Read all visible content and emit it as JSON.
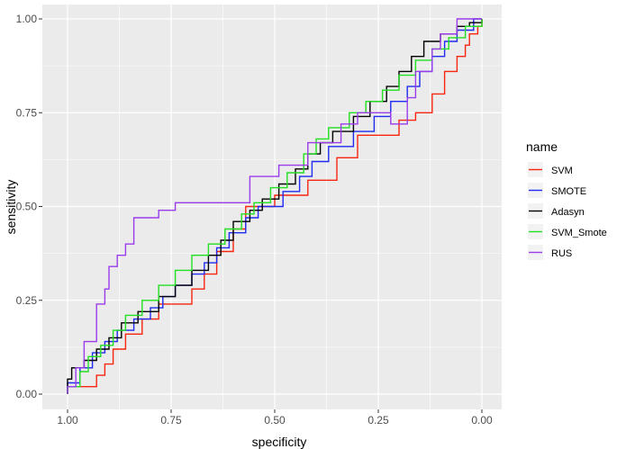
{
  "chart_data": {
    "type": "line",
    "title": "",
    "xlabel": "specificity",
    "ylabel": "sensitivity",
    "x_reversed": true,
    "xlim": [
      1.0,
      0.0
    ],
    "ylim": [
      0.0,
      1.0
    ],
    "x_ticks": [
      1.0,
      0.75,
      0.5,
      0.25,
      0.0
    ],
    "x_tick_labels": [
      "1.00",
      "0.75",
      "0.50",
      "0.25",
      "0.00"
    ],
    "y_ticks": [
      0.0,
      0.25,
      0.5,
      0.75,
      1.0
    ],
    "y_tick_labels": [
      "0.00",
      "0.25",
      "0.50",
      "0.75",
      "1.00"
    ],
    "grid": true,
    "background": "#EBEBEB",
    "legend": {
      "title": "name",
      "position": "right"
    },
    "series": [
      {
        "name": "SVM",
        "color": "#F8250F",
        "points": [
          [
            1.0,
            0.0
          ],
          [
            1.0,
            0.02
          ],
          [
            0.93,
            0.02
          ],
          [
            0.93,
            0.05
          ],
          [
            0.91,
            0.05
          ],
          [
            0.91,
            0.08
          ],
          [
            0.89,
            0.08
          ],
          [
            0.89,
            0.12
          ],
          [
            0.86,
            0.12
          ],
          [
            0.86,
            0.16
          ],
          [
            0.82,
            0.16
          ],
          [
            0.82,
            0.2
          ],
          [
            0.78,
            0.2
          ],
          [
            0.78,
            0.24
          ],
          [
            0.7,
            0.24
          ],
          [
            0.7,
            0.28
          ],
          [
            0.67,
            0.28
          ],
          [
            0.67,
            0.32
          ],
          [
            0.64,
            0.32
          ],
          [
            0.64,
            0.38
          ],
          [
            0.6,
            0.38
          ],
          [
            0.6,
            0.44
          ],
          [
            0.57,
            0.44
          ],
          [
            0.57,
            0.5
          ],
          [
            0.5,
            0.5
          ],
          [
            0.5,
            0.53
          ],
          [
            0.42,
            0.53
          ],
          [
            0.42,
            0.57
          ],
          [
            0.35,
            0.57
          ],
          [
            0.35,
            0.63
          ],
          [
            0.3,
            0.63
          ],
          [
            0.3,
            0.69
          ],
          [
            0.2,
            0.69
          ],
          [
            0.2,
            0.73
          ],
          [
            0.16,
            0.73
          ],
          [
            0.16,
            0.75
          ],
          [
            0.12,
            0.75
          ],
          [
            0.12,
            0.8
          ],
          [
            0.09,
            0.8
          ],
          [
            0.09,
            0.86
          ],
          [
            0.06,
            0.86
          ],
          [
            0.06,
            0.9
          ],
          [
            0.04,
            0.9
          ],
          [
            0.04,
            0.93
          ],
          [
            0.03,
            0.93
          ],
          [
            0.03,
            0.96
          ],
          [
            0.01,
            0.96
          ],
          [
            0.01,
            0.98
          ],
          [
            0.0,
            0.98
          ],
          [
            0.0,
            1.0
          ]
        ]
      },
      {
        "name": "SMOTE",
        "color": "#1F2BF0",
        "points": [
          [
            1.0,
            0.0
          ],
          [
            1.0,
            0.03
          ],
          [
            0.97,
            0.03
          ],
          [
            0.97,
            0.07
          ],
          [
            0.94,
            0.07
          ],
          [
            0.94,
            0.11
          ],
          [
            0.91,
            0.11
          ],
          [
            0.91,
            0.14
          ],
          [
            0.88,
            0.14
          ],
          [
            0.88,
            0.17
          ],
          [
            0.84,
            0.17
          ],
          [
            0.84,
            0.2
          ],
          [
            0.8,
            0.2
          ],
          [
            0.8,
            0.23
          ],
          [
            0.77,
            0.23
          ],
          [
            0.77,
            0.26
          ],
          [
            0.74,
            0.26
          ],
          [
            0.74,
            0.29
          ],
          [
            0.7,
            0.29
          ],
          [
            0.7,
            0.32
          ],
          [
            0.67,
            0.32
          ],
          [
            0.67,
            0.35
          ],
          [
            0.64,
            0.35
          ],
          [
            0.64,
            0.39
          ],
          [
            0.61,
            0.39
          ],
          [
            0.61,
            0.43
          ],
          [
            0.57,
            0.43
          ],
          [
            0.57,
            0.47
          ],
          [
            0.54,
            0.47
          ],
          [
            0.54,
            0.5
          ],
          [
            0.48,
            0.5
          ],
          [
            0.48,
            0.54
          ],
          [
            0.44,
            0.54
          ],
          [
            0.44,
            0.58
          ],
          [
            0.41,
            0.58
          ],
          [
            0.41,
            0.62
          ],
          [
            0.37,
            0.62
          ],
          [
            0.37,
            0.66
          ],
          [
            0.31,
            0.66
          ],
          [
            0.31,
            0.7
          ],
          [
            0.26,
            0.7
          ],
          [
            0.26,
            0.74
          ],
          [
            0.22,
            0.74
          ],
          [
            0.22,
            0.78
          ],
          [
            0.18,
            0.78
          ],
          [
            0.18,
            0.82
          ],
          [
            0.15,
            0.82
          ],
          [
            0.15,
            0.86
          ],
          [
            0.12,
            0.86
          ],
          [
            0.12,
            0.9
          ],
          [
            0.09,
            0.9
          ],
          [
            0.09,
            0.94
          ],
          [
            0.06,
            0.94
          ],
          [
            0.06,
            0.97
          ],
          [
            0.02,
            0.97
          ],
          [
            0.02,
            1.0
          ],
          [
            0.0,
            1.0
          ]
        ]
      },
      {
        "name": "Adasyn",
        "color": "#000000",
        "points": [
          [
            1.0,
            0.0
          ],
          [
            1.0,
            0.04
          ],
          [
            0.99,
            0.04
          ],
          [
            0.99,
            0.07
          ],
          [
            0.96,
            0.07
          ],
          [
            0.96,
            0.09
          ],
          [
            0.93,
            0.09
          ],
          [
            0.93,
            0.12
          ],
          [
            0.9,
            0.12
          ],
          [
            0.9,
            0.15
          ],
          [
            0.87,
            0.15
          ],
          [
            0.87,
            0.19
          ],
          [
            0.83,
            0.19
          ],
          [
            0.83,
            0.22
          ],
          [
            0.78,
            0.22
          ],
          [
            0.78,
            0.26
          ],
          [
            0.74,
            0.26
          ],
          [
            0.74,
            0.29
          ],
          [
            0.7,
            0.29
          ],
          [
            0.7,
            0.33
          ],
          [
            0.66,
            0.33
          ],
          [
            0.66,
            0.37
          ],
          [
            0.63,
            0.37
          ],
          [
            0.63,
            0.41
          ],
          [
            0.6,
            0.41
          ],
          [
            0.6,
            0.46
          ],
          [
            0.56,
            0.46
          ],
          [
            0.56,
            0.49
          ],
          [
            0.53,
            0.49
          ],
          [
            0.53,
            0.52
          ],
          [
            0.49,
            0.52
          ],
          [
            0.49,
            0.56
          ],
          [
            0.45,
            0.56
          ],
          [
            0.45,
            0.6
          ],
          [
            0.42,
            0.6
          ],
          [
            0.42,
            0.64
          ],
          [
            0.39,
            0.64
          ],
          [
            0.39,
            0.67
          ],
          [
            0.36,
            0.67
          ],
          [
            0.36,
            0.7
          ],
          [
            0.31,
            0.7
          ],
          [
            0.31,
            0.74
          ],
          [
            0.27,
            0.74
          ],
          [
            0.27,
            0.78
          ],
          [
            0.23,
            0.78
          ],
          [
            0.23,
            0.82
          ],
          [
            0.2,
            0.82
          ],
          [
            0.2,
            0.86
          ],
          [
            0.17,
            0.86
          ],
          [
            0.17,
            0.9
          ],
          [
            0.14,
            0.9
          ],
          [
            0.14,
            0.94
          ],
          [
            0.1,
            0.94
          ],
          [
            0.1,
            0.96
          ],
          [
            0.06,
            0.96
          ],
          [
            0.06,
            0.98
          ],
          [
            0.03,
            0.98
          ],
          [
            0.03,
            0.99
          ],
          [
            0.0,
            0.99
          ],
          [
            0.0,
            1.0
          ]
        ]
      },
      {
        "name": "SVM_Smote",
        "color": "#22E022",
        "points": [
          [
            1.0,
            0.0
          ],
          [
            1.0,
            0.02
          ],
          [
            0.97,
            0.02
          ],
          [
            0.97,
            0.06
          ],
          [
            0.95,
            0.06
          ],
          [
            0.95,
            0.1
          ],
          [
            0.92,
            0.1
          ],
          [
            0.92,
            0.13
          ],
          [
            0.89,
            0.13
          ],
          [
            0.89,
            0.17
          ],
          [
            0.86,
            0.17
          ],
          [
            0.86,
            0.21
          ],
          [
            0.82,
            0.21
          ],
          [
            0.82,
            0.25
          ],
          [
            0.78,
            0.25
          ],
          [
            0.78,
            0.29
          ],
          [
            0.74,
            0.29
          ],
          [
            0.74,
            0.33
          ],
          [
            0.7,
            0.33
          ],
          [
            0.7,
            0.37
          ],
          [
            0.66,
            0.37
          ],
          [
            0.66,
            0.4
          ],
          [
            0.62,
            0.4
          ],
          [
            0.62,
            0.44
          ],
          [
            0.58,
            0.44
          ],
          [
            0.58,
            0.48
          ],
          [
            0.55,
            0.48
          ],
          [
            0.55,
            0.51
          ],
          [
            0.51,
            0.51
          ],
          [
            0.51,
            0.55
          ],
          [
            0.47,
            0.55
          ],
          [
            0.47,
            0.59
          ],
          [
            0.43,
            0.59
          ],
          [
            0.43,
            0.64
          ],
          [
            0.4,
            0.64
          ],
          [
            0.4,
            0.68
          ],
          [
            0.37,
            0.68
          ],
          [
            0.37,
            0.71
          ],
          [
            0.32,
            0.71
          ],
          [
            0.32,
            0.75
          ],
          [
            0.28,
            0.75
          ],
          [
            0.28,
            0.78
          ],
          [
            0.24,
            0.78
          ],
          [
            0.24,
            0.81
          ],
          [
            0.2,
            0.81
          ],
          [
            0.2,
            0.85
          ],
          [
            0.16,
            0.85
          ],
          [
            0.16,
            0.89
          ],
          [
            0.12,
            0.89
          ],
          [
            0.12,
            0.92
          ],
          [
            0.08,
            0.92
          ],
          [
            0.08,
            0.95
          ],
          [
            0.04,
            0.95
          ],
          [
            0.04,
            0.98
          ],
          [
            0.0,
            0.98
          ],
          [
            0.0,
            1.0
          ]
        ]
      },
      {
        "name": "RUS",
        "color": "#9B3CEB",
        "points": [
          [
            1.0,
            0.0
          ],
          [
            1.0,
            0.02
          ],
          [
            0.98,
            0.02
          ],
          [
            0.98,
            0.07
          ],
          [
            0.96,
            0.07
          ],
          [
            0.96,
            0.14
          ],
          [
            0.93,
            0.14
          ],
          [
            0.93,
            0.24
          ],
          [
            0.91,
            0.24
          ],
          [
            0.91,
            0.28
          ],
          [
            0.9,
            0.28
          ],
          [
            0.9,
            0.34
          ],
          [
            0.88,
            0.34
          ],
          [
            0.88,
            0.37
          ],
          [
            0.86,
            0.37
          ],
          [
            0.86,
            0.4
          ],
          [
            0.84,
            0.4
          ],
          [
            0.84,
            0.47
          ],
          [
            0.78,
            0.47
          ],
          [
            0.78,
            0.49
          ],
          [
            0.74,
            0.49
          ],
          [
            0.74,
            0.51
          ],
          [
            0.56,
            0.51
          ],
          [
            0.56,
            0.58
          ],
          [
            0.49,
            0.58
          ],
          [
            0.49,
            0.61
          ],
          [
            0.42,
            0.61
          ],
          [
            0.42,
            0.67
          ],
          [
            0.34,
            0.67
          ],
          [
            0.34,
            0.72
          ],
          [
            0.3,
            0.72
          ],
          [
            0.3,
            0.75
          ],
          [
            0.22,
            0.75
          ],
          [
            0.22,
            0.72
          ],
          [
            0.18,
            0.72
          ],
          [
            0.18,
            0.79
          ],
          [
            0.16,
            0.79
          ],
          [
            0.16,
            0.86
          ],
          [
            0.12,
            0.86
          ],
          [
            0.12,
            0.92
          ],
          [
            0.1,
            0.92
          ],
          [
            0.1,
            0.96
          ],
          [
            0.06,
            0.96
          ],
          [
            0.06,
            1.0
          ],
          [
            0.0,
            1.0
          ]
        ]
      }
    ]
  }
}
